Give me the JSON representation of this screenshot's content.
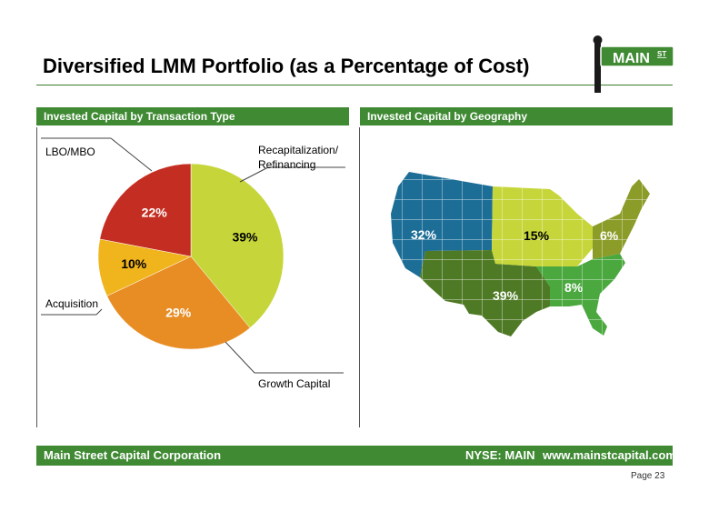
{
  "header": {
    "title": "Diversified LMM Portfolio (as a Percentage of Cost)",
    "logo_text": "MAIN",
    "logo_superscript": "ST"
  },
  "left_panel": {
    "title": "Invested Capital by Transaction Type"
  },
  "right_panel": {
    "title": "Invested Capital by Geography"
  },
  "chart_data": [
    {
      "type": "pie",
      "title": "Invested Capital by Transaction Type",
      "categories": [
        "Recapitalization/ Refinancing",
        "Growth Capital",
        "Acquisition",
        "LBO/MBO"
      ],
      "values": [
        39,
        29,
        10,
        22
      ],
      "data_labels": [
        "39%",
        "29%",
        "10%",
        "22%"
      ],
      "colors": [
        "#c6d63a",
        "#e88d24",
        "#f0b41c",
        "#c42e22"
      ]
    },
    {
      "type": "map",
      "title": "Invested Capital by Geography",
      "categories": [
        "West",
        "Midwest",
        "Northeast",
        "Southwest",
        "Southeast"
      ],
      "values": [
        32,
        15,
        6,
        39,
        8
      ],
      "data_labels": [
        "32%",
        "15%",
        "6%",
        "39%",
        "8%"
      ],
      "colors": [
        "#1d6e97",
        "#c6d63a",
        "#8c9c28",
        "#4f7a25",
        "#4aa83f"
      ]
    }
  ],
  "footer": {
    "company": "Main Street Capital Corporation",
    "ticker": "NYSE: MAIN",
    "website": "www.mainstcapital.com",
    "page": "Page 23"
  },
  "colors": {
    "accent_green": "#3f8a33"
  }
}
